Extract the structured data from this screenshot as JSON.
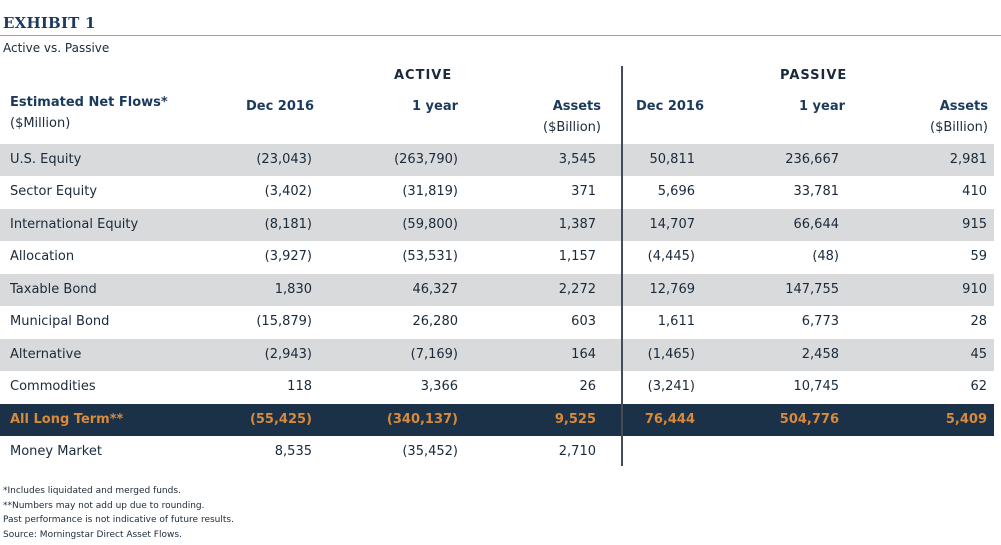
{
  "exhibit": "EXHIBIT 1",
  "subtitle": "Active vs. Passive",
  "groups": {
    "active": "ACTIVE",
    "passive": "PASSIVE"
  },
  "headers": {
    "label_line1": "Estimated Net Flows*",
    "label_line2": "($Million)",
    "dec2016": "Dec 2016",
    "one_year": "1 year",
    "assets_line1": "Assets",
    "assets_line2": "($Billion)"
  },
  "rows": [
    {
      "label": "U.S. Equity",
      "active": [
        "(23,043)",
        "(263,790)",
        "3,545"
      ],
      "passive": [
        "50,811",
        "236,667",
        "2,981"
      ]
    },
    {
      "label": "Sector Equity",
      "active": [
        "(3,402)",
        "(31,819)",
        "371"
      ],
      "passive": [
        "5,696",
        "33,781",
        "410"
      ]
    },
    {
      "label": "International Equity",
      "active": [
        "(8,181)",
        "(59,800)",
        "1,387"
      ],
      "passive": [
        "14,707",
        "66,644",
        "915"
      ]
    },
    {
      "label": "Allocation",
      "active": [
        "(3,927)",
        "(53,531)",
        "1,157"
      ],
      "passive": [
        "(4,445)",
        "(48)",
        "59"
      ]
    },
    {
      "label": "Taxable Bond",
      "active": [
        "1,830",
        "46,327",
        "2,272"
      ],
      "passive": [
        "12,769",
        "147,755",
        "910"
      ]
    },
    {
      "label": "Municipal Bond",
      "active": [
        "(15,879)",
        "26,280",
        "603"
      ],
      "passive": [
        "1,611",
        "6,773",
        "28"
      ]
    },
    {
      "label": "Alternative",
      "active": [
        "(2,943)",
        "(7,169)",
        "164"
      ],
      "passive": [
        "(1,465)",
        "2,458",
        "45"
      ]
    },
    {
      "label": "Commodities",
      "active": [
        "118",
        "3,366",
        "26"
      ],
      "passive": [
        "(3,241)",
        "10,745",
        "62"
      ]
    },
    {
      "label": "All Long Term**",
      "active": [
        "(55,425)",
        "(340,137)",
        "9,525"
      ],
      "passive": [
        "76,444",
        "504,776",
        "5,409"
      ]
    },
    {
      "label": "Money Market",
      "active": [
        "8,535",
        "(35,452)",
        "2,710"
      ]
    }
  ],
  "footnotes": [
    "*Includes liquidated and merged funds.",
    "**Numbers may not add up due to rounding.",
    "Past performance is not indicative of future results.",
    "Source:  Morningstar Direct Asset Flows."
  ],
  "colors": {
    "navy": "#1b3147",
    "shade": "#d9dadc",
    "total_text": "#d9893a",
    "heading": "#1b3a5c"
  }
}
